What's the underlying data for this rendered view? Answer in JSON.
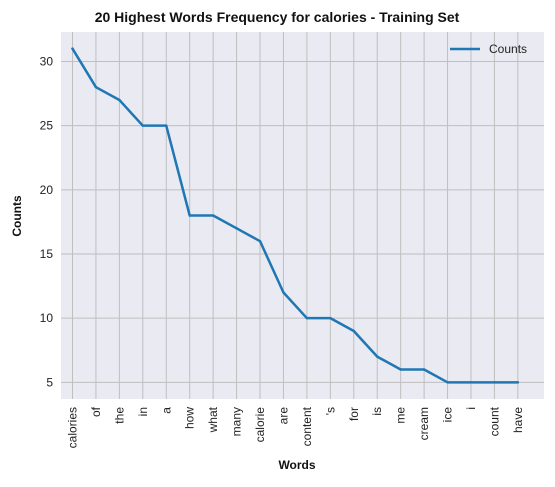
{
  "chart_data": {
    "type": "line",
    "title": "20 Highest Words Frequency for calories - Training Set",
    "xlabel": "Words",
    "ylabel": "Counts",
    "categories": [
      "calories",
      "of",
      "the",
      "in",
      "a",
      "how",
      "what",
      "many",
      "calorie",
      "are",
      "content",
      "'s",
      "for",
      "is",
      "me",
      "cream",
      "ice",
      "i",
      "count",
      "have"
    ],
    "series": [
      {
        "name": "Counts",
        "values": [
          31,
          28,
          27,
          25,
          25,
          18,
          18,
          17,
          16,
          12,
          10,
          10,
          9,
          7,
          6,
          6,
          5,
          5,
          5,
          5
        ]
      }
    ],
    "ylim": [
      3.7,
      32.3
    ],
    "yticks": [
      5,
      10,
      15,
      20,
      25,
      30
    ],
    "grid": true,
    "legend_position": "top-right",
    "colors": {
      "line": "#1f77b4",
      "plot_background": "#eaeaf2",
      "grid": "#bfbfbf"
    }
  }
}
